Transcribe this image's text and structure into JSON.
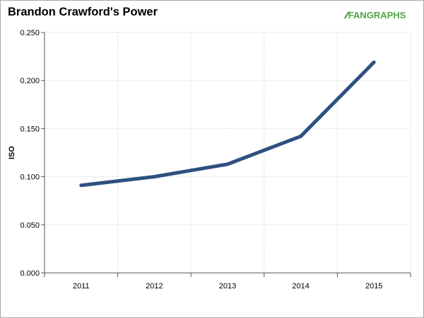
{
  "title": "Brandon Crawford's Power",
  "logo": {
    "text_a": "FAN",
    "text_b": "GRAPHS",
    "icon": "fangraphs-logo-icon"
  },
  "chart_data": {
    "type": "line",
    "title": "Brandon Crawford's Power",
    "xlabel": "",
    "ylabel": "ISO",
    "categories": [
      "2011",
      "2012",
      "2013",
      "2014",
      "2015"
    ],
    "series": [
      {
        "values": [
          0.091,
          0.1,
          0.113,
          0.142,
          0.219
        ],
        "color": "#2e5080"
      }
    ],
    "ylim": [
      0,
      0.25
    ],
    "yticks": [
      "0.000",
      "0.050",
      "0.100",
      "0.150",
      "0.200",
      "0.250"
    ],
    "grid": true,
    "legend": "none"
  }
}
